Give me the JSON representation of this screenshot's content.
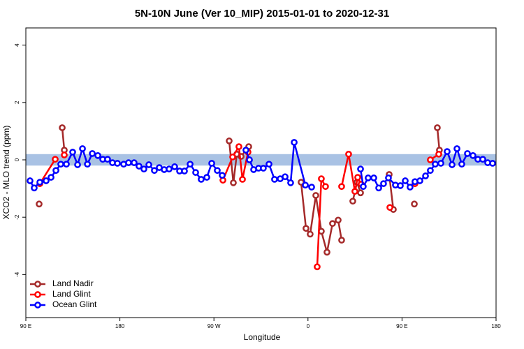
{
  "chart_data": {
    "type": "line",
    "title": "5N-10N June (Ver 10_MIP)   2015-01-01 to 2020-12-31",
    "xlabel": "Longitude",
    "ylabel": "XCO2 - MLO trend (ppm)",
    "xlim": [
      90,
      540
    ],
    "xticks": [
      {
        "value": 90,
        "label": "90 E"
      },
      180,
      {
        "value": 270,
        "label": "90 W"
      },
      {
        "value": 360,
        "label": "0"
      },
      {
        "value": 450,
        "label": "90 E"
      },
      {
        "value": 540,
        "label": "180"
      }
    ],
    "ylim": [
      -5.5,
      4.6
    ],
    "yticks": [
      -4,
      -2,
      0,
      2,
      4
    ],
    "band": {
      "range": [
        -0.2,
        0.2
      ],
      "color": "#a9c2e4"
    },
    "legend": "bottom-left",
    "series": [
      {
        "name": "Land Nadir",
        "color": "#a52a2a",
        "x": [
          102.7,
          null,
          124.8,
          126.8,
          null,
          284.6,
          288.6,
          291.9,
          296,
          303.3,
          null,
          353.4,
          358.1,
          362.1,
          367.5,
          372.8,
          378.2,
          383.5,
          388.9,
          392.2,
          null,
          402.9,
          406.9,
          410.3,
          null,
          437.7,
          441.7,
          null,
          461.8,
          null,
          483.8,
          485.8
        ],
        "values": [
          -1.54,
          null,
          1.12,
          0.34,
          null,
          0.66,
          -0.8,
          0.2,
          0.12,
          0.46,
          null,
          -0.78,
          -2.39,
          -2.59,
          -1.24,
          -2.49,
          -3.22,
          -2.22,
          -2.1,
          -2.8,
          null,
          -1.44,
          -0.78,
          -1.15,
          null,
          -0.51,
          -1.73,
          null,
          -1.54,
          null,
          1.12,
          0.34
        ]
      },
      {
        "name": "Land Glint",
        "color": "#ff0000",
        "x": [
          103.4,
          118.1,
          null,
          126.8,
          null,
          278.6,
          287.9,
          293.9,
          297.3,
          302.6,
          null,
          368.8,
          372.8,
          376.8,
          null,
          392.2,
          398.9,
          404.9,
          407.6,
          410.9,
          null,
          438.4,
          null,
          462.4,
          null,
          477.1,
          485.2
        ],
        "values": [
          -0.83,
          0.02,
          null,
          0.17,
          null,
          -0.71,
          0.1,
          0.46,
          -0.68,
          0.27,
          null,
          -3.73,
          -0.66,
          -0.93,
          null,
          -0.93,
          0.2,
          -1.1,
          -0.61,
          -0.85,
          null,
          -1.66,
          null,
          -0.83,
          null,
          0,
          0.2
        ]
      },
      {
        "name": "Ocean Glint",
        "color": "#0000ff",
        "x": [
          94,
          98,
          103.4,
          109.4,
          114.1,
          118.8,
          123.4,
          128.8,
          134.8,
          139.5,
          144.2,
          148.9,
          153.6,
          158.9,
          163.6,
          168.2,
          172.9,
          177.6,
          183.6,
          188.3,
          193.6,
          198.3,
          203,
          207.7,
          213,
          217.7,
          222.4,
          227.1,
          232.4,
          237.1,
          241.8,
          247.2,
          252.5,
          257.8,
          263.2,
          267.9,
          273.2,
          277.9,
          null,
          300.6,
          304,
          308,
          312.7,
          317.3,
          322.7,
          328,
          333.4,
          338.1,
          343.4,
          346.8,
          357.5,
          363.5,
          null,
          410.3,
          412.9,
          417.6,
          423,
          427.7,
          432.3,
          437,
          443.7,
          448.4,
          453.1,
          457.7,
          462.4,
          467.1,
          472.5,
          477.1,
          481.8,
          487.2,
          493.2,
          497.9,
          502.6,
          507.2,
          512.6,
          517.9,
          522.6,
          527.3,
          532,
          536.7
        ],
        "values": [
          -0.73,
          -0.98,
          -0.78,
          -0.73,
          -0.61,
          -0.37,
          -0.15,
          -0.15,
          0.27,
          -0.17,
          0.39,
          -0.15,
          0.22,
          0.15,
          0.02,
          0.02,
          -0.1,
          -0.12,
          -0.15,
          -0.1,
          -0.1,
          -0.22,
          -0.32,
          -0.17,
          -0.37,
          -0.27,
          -0.34,
          -0.32,
          -0.24,
          -0.39,
          -0.39,
          -0.15,
          -0.44,
          -0.68,
          -0.61,
          -0.12,
          -0.37,
          -0.54,
          null,
          0.34,
          0,
          -0.34,
          -0.29,
          -0.29,
          -0.15,
          -0.68,
          -0.66,
          -0.59,
          -0.8,
          0.61,
          -0.88,
          -0.95,
          null,
          -0.32,
          -0.93,
          -0.63,
          -0.63,
          -0.98,
          -0.83,
          -0.63,
          -0.88,
          -0.9,
          -0.73,
          -0.95,
          -0.76,
          -0.73,
          -0.56,
          -0.37,
          -0.15,
          -0.12,
          0.29,
          -0.17,
          0.39,
          -0.15,
          0.22,
          0.15,
          0.02,
          0.02,
          -0.1,
          -0.12
        ]
      }
    ]
  }
}
